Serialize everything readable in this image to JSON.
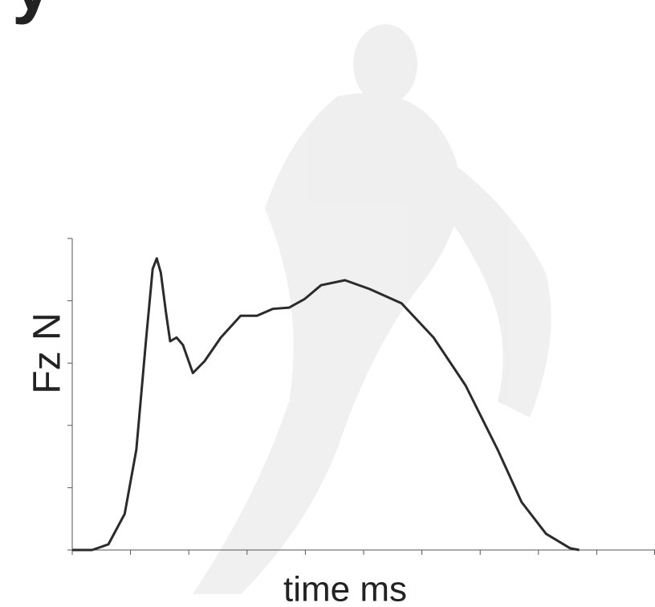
{
  "chart_data": {
    "type": "line",
    "title": "y",
    "y_label": "Fz N",
    "x_label": "time ms",
    "x": [
      0,
      0.34,
      0.62,
      0.9,
      1.1,
      1.27,
      1.38,
      1.45,
      1.52,
      1.61,
      1.68,
      1.79,
      1.9,
      2.07,
      2.27,
      2.55,
      2.89,
      3.17,
      3.44,
      3.72,
      3.99,
      4.27,
      4.68,
      5.1,
      5.65,
      6.2,
      6.75,
      7.3,
      7.71,
      8.13,
      8.54,
      8.7
    ],
    "series": [
      {
        "color": "#2b2b2b",
        "values": [
          0,
          0,
          0.09,
          0.58,
          1.61,
          3.41,
          4.51,
          4.68,
          4.45,
          3.8,
          3.35,
          3.41,
          3.29,
          2.84,
          3.03,
          3.41,
          3.76,
          3.76,
          3.87,
          3.89,
          4.03,
          4.25,
          4.33,
          4.19,
          3.96,
          3.41,
          2.64,
          1.61,
          0.77,
          0.26,
          0.03,
          0
        ]
      }
    ],
    "xlim": [
      0,
      10
    ],
    "xticks": [
      0,
      1,
      2,
      3,
      4,
      5,
      6,
      7,
      8,
      9,
      10
    ],
    "ylim": [
      0,
      5
    ],
    "yticks": [
      0,
      1,
      2,
      3,
      4,
      5
    ]
  }
}
